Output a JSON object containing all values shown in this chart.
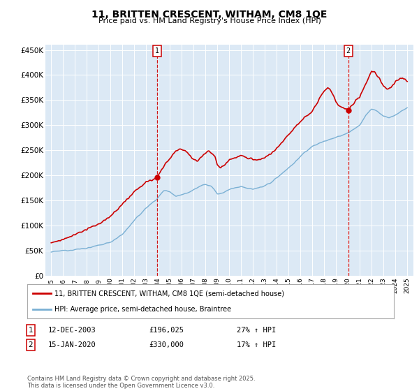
{
  "title": "11, BRITTEN CRESCENT, WITHAM, CM8 1QE",
  "subtitle": "Price paid vs. HM Land Registry's House Price Index (HPI)",
  "red_label": "11, BRITTEN CRESCENT, WITHAM, CM8 1QE (semi-detached house)",
  "blue_label": "HPI: Average price, semi-detached house, Braintree",
  "footnote": "Contains HM Land Registry data © Crown copyright and database right 2025.\nThis data is licensed under the Open Government Licence v3.0.",
  "annotation1": {
    "num": "1",
    "date": "12-DEC-2003",
    "price": "£196,025",
    "pct": "27% ↑ HPI",
    "x_year": 2003.95
  },
  "annotation2": {
    "num": "2",
    "date": "15-JAN-2020",
    "price": "£330,000",
    "pct": "17% ↑ HPI",
    "x_year": 2020.04
  },
  "ylim": [
    0,
    460000
  ],
  "yticks": [
    0,
    50000,
    100000,
    150000,
    200000,
    250000,
    300000,
    350000,
    400000,
    450000
  ],
  "ytick_labels": [
    "£0",
    "£50K",
    "£100K",
    "£150K",
    "£200K",
    "£250K",
    "£300K",
    "£350K",
    "£400K",
    "£450K"
  ],
  "xlim_start": 1994.5,
  "xlim_end": 2025.5,
  "background_color": "#dce9f5",
  "red_color": "#cc0000",
  "blue_color": "#7ab0d4",
  "vline_color": "#cc0000"
}
